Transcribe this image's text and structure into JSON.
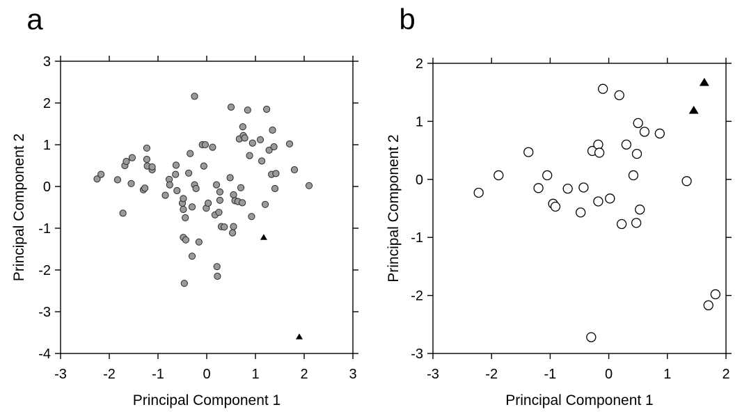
{
  "chart_data": [
    {
      "panel_label": "a",
      "type": "scatter",
      "xlabel": "Principal Component 1",
      "ylabel": "Principal Component 2",
      "xlim": [
        -3,
        3
      ],
      "ylim": [
        -4,
        3
      ],
      "xticks": [
        -3,
        -2,
        -1,
        0,
        1,
        2,
        3
      ],
      "yticks": [
        -4,
        -3,
        -2,
        -1,
        0,
        1,
        2,
        3
      ],
      "series": [
        {
          "marker": "circle-gray",
          "points": [
            [
              -2.25,
              0.18
            ],
            [
              -2.17,
              0.29
            ],
            [
              -1.83,
              0.16
            ],
            [
              -1.72,
              -0.64
            ],
            [
              -1.68,
              0.5
            ],
            [
              -1.65,
              0.6
            ],
            [
              -1.53,
              0.69
            ],
            [
              -1.55,
              0.07
            ],
            [
              -1.3,
              -0.08
            ],
            [
              -1.27,
              -0.04
            ],
            [
              -1.23,
              0.92
            ],
            [
              -1.22,
              0.49
            ],
            [
              -1.23,
              0.65
            ],
            [
              -1.12,
              0.4
            ],
            [
              -1.12,
              0.47
            ],
            [
              -0.85,
              -0.21
            ],
            [
              -0.77,
              0.17
            ],
            [
              -0.76,
              0.04
            ],
            [
              -0.64,
              0.29
            ],
            [
              -0.63,
              0.51
            ],
            [
              -0.61,
              -0.1
            ],
            [
              -0.5,
              -0.4
            ],
            [
              -0.48,
              -0.29
            ],
            [
              -0.48,
              -0.55
            ],
            [
              -0.48,
              -1.22
            ],
            [
              -0.46,
              -2.32
            ],
            [
              -0.44,
              -0.75
            ],
            [
              -0.43,
              -1.28
            ],
            [
              -0.37,
              0.32
            ],
            [
              -0.34,
              0.79
            ],
            [
              -0.3,
              -0.49
            ],
            [
              -0.3,
              -1.67
            ],
            [
              -0.25,
              2.16
            ],
            [
              -0.25,
              0.04
            ],
            [
              -0.22,
              -0.05
            ],
            [
              -0.16,
              -1.33
            ],
            [
              -0.09,
              1.0
            ],
            [
              -0.06,
              0.49
            ],
            [
              -0.03,
              1.0
            ],
            [
              -0.01,
              -0.52
            ],
            [
              0.03,
              -0.4
            ],
            [
              0.12,
              0.94
            ],
            [
              0.17,
              -0.68
            ],
            [
              0.2,
              0.04
            ],
            [
              0.21,
              -1.92
            ],
            [
              0.22,
              -2.15
            ],
            [
              0.25,
              -0.62
            ],
            [
              0.27,
              -0.13
            ],
            [
              0.27,
              -0.33
            ],
            [
              0.3,
              -0.96
            ],
            [
              0.36,
              -0.97
            ],
            [
              0.48,
              0.21
            ],
            [
              0.5,
              1.9
            ],
            [
              0.53,
              -1.11
            ],
            [
              0.55,
              -0.96
            ],
            [
              0.55,
              -0.2
            ],
            [
              0.58,
              -0.34
            ],
            [
              0.64,
              -0.36
            ],
            [
              0.67,
              1.14
            ],
            [
              0.7,
              -0.03
            ],
            [
              0.73,
              -0.39
            ],
            [
              0.74,
              1.43
            ],
            [
              0.75,
              1.22
            ],
            [
              0.78,
              1.16
            ],
            [
              0.84,
              1.83
            ],
            [
              0.88,
              0.74
            ],
            [
              0.92,
              -0.72
            ],
            [
              0.94,
              1.04
            ],
            [
              1.1,
              1.12
            ],
            [
              1.13,
              0.61
            ],
            [
              1.2,
              -0.43
            ],
            [
              1.23,
              1.85
            ],
            [
              1.28,
              0.87
            ],
            [
              1.33,
              0.29
            ],
            [
              1.35,
              1.35
            ],
            [
              1.38,
              0.95
            ],
            [
              1.4,
              -0.05
            ],
            [
              1.42,
              0.31
            ],
            [
              1.7,
              1.02
            ],
            [
              1.8,
              0.4
            ],
            [
              2.1,
              0.02
            ]
          ]
        },
        {
          "marker": "triangle-black",
          "points": [
            [
              1.17,
              -1.22
            ],
            [
              1.9,
              -3.6
            ]
          ]
        }
      ]
    },
    {
      "panel_label": "b",
      "type": "scatter",
      "xlabel": "Principal Component 1",
      "ylabel": "Principal Component 2",
      "xlim": [
        -3,
        2
      ],
      "ylim": [
        -3,
        2
      ],
      "xticks": [
        -3,
        -2,
        -1,
        0,
        1,
        2
      ],
      "yticks": [
        -3,
        -2,
        -1,
        0,
        1,
        2
      ],
      "series": [
        {
          "marker": "circle-open",
          "points": [
            [
              -2.22,
              -0.23
            ],
            [
              -1.88,
              0.07
            ],
            [
              -1.37,
              0.47
            ],
            [
              -1.2,
              -0.15
            ],
            [
              -1.05,
              0.07
            ],
            [
              -0.95,
              -0.42
            ],
            [
              -0.91,
              -0.47
            ],
            [
              -0.7,
              -0.16
            ],
            [
              -0.48,
              -0.57
            ],
            [
              -0.43,
              -0.14
            ],
            [
              -0.28,
              0.49
            ],
            [
              -0.18,
              0.6
            ],
            [
              -0.16,
              0.46
            ],
            [
              -0.18,
              -0.38
            ],
            [
              -0.3,
              -2.72
            ],
            [
              -0.1,
              1.56
            ],
            [
              0.02,
              -0.33
            ],
            [
              0.18,
              1.45
            ],
            [
              0.22,
              -0.77
            ],
            [
              0.3,
              0.6
            ],
            [
              0.42,
              0.07
            ],
            [
              0.47,
              -0.75
            ],
            [
              0.48,
              0.44
            ],
            [
              0.5,
              0.97
            ],
            [
              0.53,
              -0.52
            ],
            [
              0.61,
              0.82
            ],
            [
              0.87,
              0.79
            ],
            [
              1.33,
              -0.03
            ],
            [
              1.7,
              -2.17
            ],
            [
              1.82,
              -1.98
            ]
          ]
        },
        {
          "marker": "triangle-black",
          "points": [
            [
              1.45,
              1.19
            ],
            [
              1.63,
              1.67
            ]
          ]
        }
      ]
    }
  ]
}
